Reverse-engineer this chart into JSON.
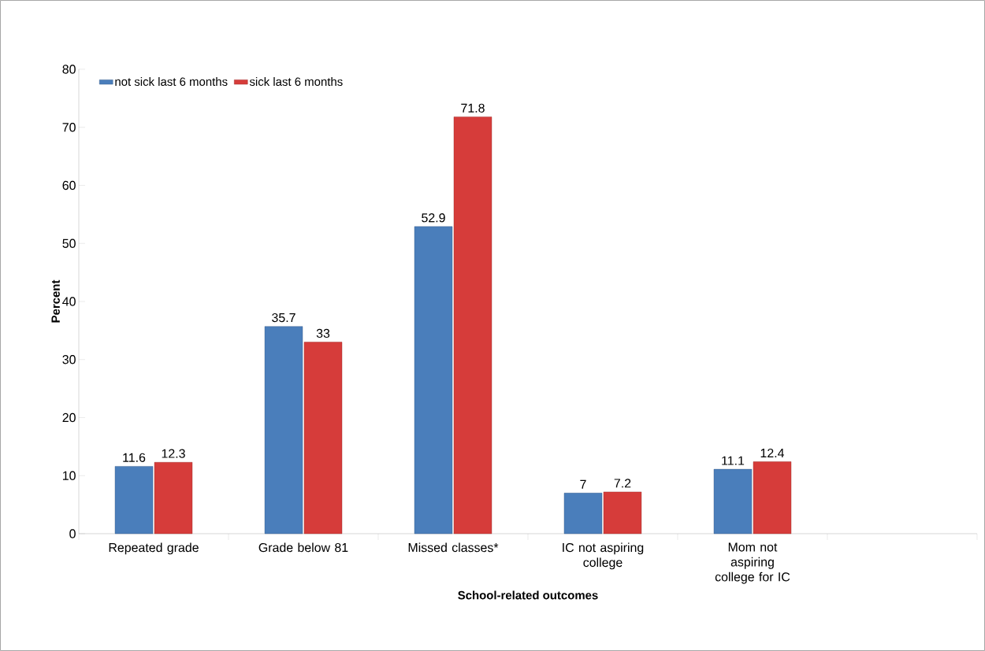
{
  "chart_data": {
    "type": "bar",
    "xlabel": "School-related outcomes",
    "ylabel": "Percent",
    "categories": [
      "Repeated grade",
      "Grade below 81",
      "Missed classes*",
      "IC not aspiring college",
      "Mom not aspiring college for IC",
      null
    ],
    "series": [
      {
        "name": "not sick last 6 months",
        "color": "#4a7ebb",
        "values": [
          11.6,
          35.7,
          52.9,
          7,
          11.1,
          null
        ]
      },
      {
        "name": "sick last 6 months",
        "color": "#d63c3a",
        "values": [
          12.3,
          33,
          71.8,
          7.2,
          12.4,
          null
        ]
      }
    ],
    "ylim": [
      0,
      80
    ],
    "yticks": [
      0,
      10,
      20,
      30,
      40,
      50,
      60,
      70,
      80
    ],
    "data_labels": true,
    "legend": "top left",
    "grid": false
  }
}
